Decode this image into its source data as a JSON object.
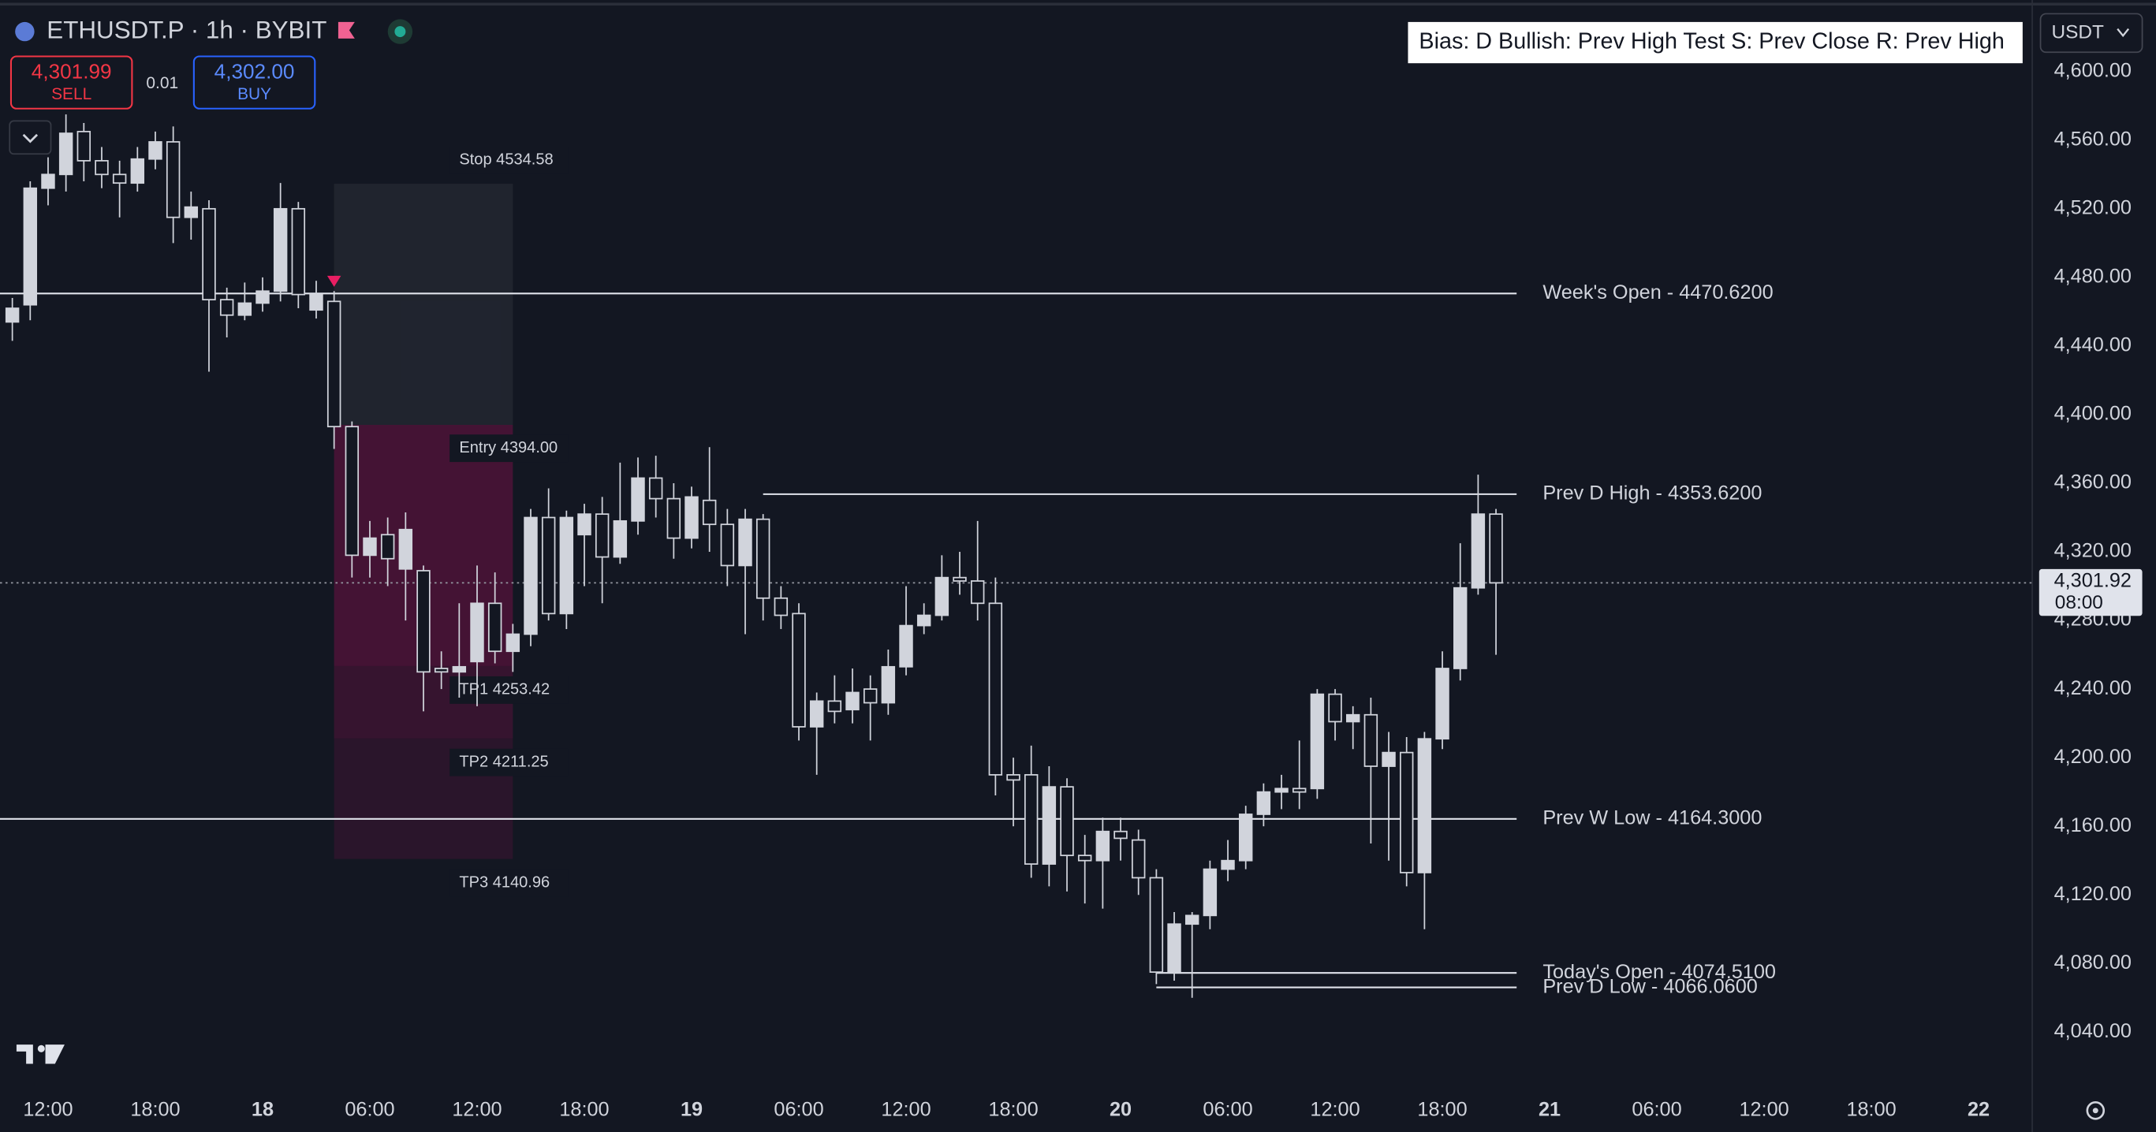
{
  "chart_data": {
    "type": "candlestick",
    "title": "ETHUSDT.P · 1h · BYBIT",
    "x": [
      -2,
      -1,
      0,
      1,
      2,
      3,
      4,
      5,
      6,
      7,
      8,
      9,
      10,
      11,
      12,
      13,
      14,
      15,
      16,
      17,
      18,
      19,
      20,
      21,
      22,
      23,
      24,
      25,
      26,
      27,
      28,
      29,
      30,
      31,
      32,
      33,
      34,
      35,
      36,
      37,
      38,
      39,
      40,
      41,
      42,
      43,
      44,
      45,
      46,
      47,
      48,
      49,
      50,
      51,
      52,
      53,
      54,
      55,
      56,
      57,
      58,
      59,
      60,
      61,
      62,
      63,
      64,
      65,
      66,
      67,
      68,
      69,
      70,
      71,
      72,
      73,
      74,
      75,
      76,
      77,
      78,
      79,
      80,
      81
    ],
    "open": [
      4454,
      4464,
      4532,
      4540,
      4565,
      4548,
      4540,
      4535,
      4549,
      4559,
      4515,
      4520,
      4467,
      4458,
      4465,
      4472,
      4520,
      4461,
      4466,
      4393,
      4318,
      4330,
      4310,
      4309,
      4252,
      4250,
      4256,
      4290,
      4262,
      4272,
      4340,
      4284,
      4330,
      4342,
      4317,
      4338,
      4363,
      4351,
      4328,
      4350,
      4336,
      4312,
      4339,
      4293,
      4284,
      4218,
      4233,
      4228,
      4240,
      4232,
      4253,
      4277,
      4283,
      4305,
      4303,
      4290,
      4190,
      4190,
      4138,
      4183,
      4143,
      4140,
      4157,
      4152,
      4130,
      4075,
      4103,
      4108,
      4135,
      4140,
      4167,
      4180,
      4182,
      4182,
      4237,
      4221,
      4225,
      4195,
      4203,
      4133,
      4211,
      4252,
      4299,
      4342
    ],
    "high": [
      4468,
      4536,
      4550,
      4575,
      4570,
      4556,
      4548,
      4556,
      4565,
      4568,
      4530,
      4525,
      4474,
      4477,
      4480,
      4535,
      4524,
      4478,
      4472,
      4396,
      4338,
      4340,
      4343,
      4312,
      4262,
      4290,
      4312,
      4308,
      4278,
      4345,
      4357,
      4344,
      4348,
      4352,
      4372,
      4375,
      4376,
      4360,
      4358,
      4381,
      4345,
      4345,
      4342,
      4300,
      4290,
      4238,
      4248,
      4252,
      4248,
      4263,
      4300,
      4290,
      4318,
      4320,
      4338,
      4305,
      4200,
      4207,
      4195,
      4188,
      4155,
      4165,
      4165,
      4158,
      4135,
      4110,
      4110,
      4140,
      4152,
      4172,
      4185,
      4190,
      4210,
      4240,
      4240,
      4230,
      4235,
      4215,
      4212,
      4215,
      4262,
      4325,
      4365,
      4345
    ],
    "low": [
      4443,
      4455,
      4522,
      4530,
      4536,
      4532,
      4515,
      4530,
      4543,
      4500,
      4502,
      4425,
      4445,
      4455,
      4460,
      4466,
      4462,
      4456,
      4380,
      4305,
      4305,
      4300,
      4280,
      4227,
      4240,
      4235,
      4230,
      4255,
      4250,
      4265,
      4280,
      4275,
      4300,
      4290,
      4313,
      4330,
      4340,
      4316,
      4322,
      4320,
      4300,
      4272,
      4280,
      4275,
      4210,
      4190,
      4220,
      4220,
      4210,
      4225,
      4248,
      4272,
      4280,
      4295,
      4280,
      4178,
      4160,
      4130,
      4125,
      4122,
      4115,
      4112,
      4140,
      4120,
      4068,
      4070,
      4060,
      4100,
      4128,
      4135,
      4160,
      4170,
      4170,
      4176,
      4210,
      4205,
      4150,
      4140,
      4125,
      4100,
      4205,
      4245,
      4295,
      4260
    ],
    "close": [
      4462,
      4532,
      4540,
      4564,
      4548,
      4540,
      4535,
      4549,
      4559,
      4515,
      4521,
      4467,
      4458,
      4465,
      4472,
      4520,
      4470,
      4470,
      4393,
      4318,
      4328,
      4316,
      4333,
      4250,
      4250,
      4253,
      4290,
      4262,
      4272,
      4340,
      4284,
      4340,
      4342,
      4317,
      4338,
      4363,
      4351,
      4328,
      4352,
      4336,
      4312,
      4339,
      4293,
      4283,
      4218,
      4233,
      4227,
      4238,
      4232,
      4253,
      4277,
      4283,
      4305,
      4303,
      4290,
      4190,
      4187,
      4138,
      4183,
      4143,
      4140,
      4157,
      4153,
      4130,
      4075,
      4103,
      4108,
      4135,
      4140,
      4167,
      4180,
      4182,
      4180,
      4237,
      4221,
      4225,
      4195,
      4203,
      4133,
      4211,
      4252,
      4299,
      4342,
      4301.92
    ],
    "up_color": "#d1d4dc",
    "down_color": "#131722",
    "xlim": [
      -2.69,
      111
    ],
    "xticks": [
      {
        "value": 0,
        "label": "12:00"
      },
      {
        "value": 6,
        "label": "18:00"
      },
      {
        "value": 12,
        "label": "18"
      },
      {
        "value": 18,
        "label": "06:00"
      },
      {
        "value": 24,
        "label": "12:00"
      },
      {
        "value": 30,
        "label": "18:00"
      },
      {
        "value": 36,
        "label": "19"
      },
      {
        "value": 42,
        "label": "06:00"
      },
      {
        "value": 48,
        "label": "12:00"
      },
      {
        "value": 54,
        "label": "18:00"
      },
      {
        "value": 60,
        "label": "20"
      },
      {
        "value": 66,
        "label": "06:00"
      },
      {
        "value": 72,
        "label": "12:00"
      },
      {
        "value": 78,
        "label": "18:00"
      },
      {
        "value": 84,
        "label": "21"
      },
      {
        "value": 90,
        "label": "06:00"
      },
      {
        "value": 96,
        "label": "12:00"
      },
      {
        "value": 102,
        "label": "18:00"
      },
      {
        "value": 108,
        "label": "22"
      }
    ],
    "ylim": [
      4008.7,
      4641.7
    ],
    "yticks": [
      {
        "value": 4600,
        "label": "4,600.00"
      },
      {
        "value": 4560,
        "label": "4,560.00"
      },
      {
        "value": 4520,
        "label": "4,520.00"
      },
      {
        "value": 4480,
        "label": "4,480.00"
      },
      {
        "value": 4440,
        "label": "4,440.00"
      },
      {
        "value": 4400,
        "label": "4,400.00"
      },
      {
        "value": 4360,
        "label": "4,360.00"
      },
      {
        "value": 4320,
        "label": "4,320.00"
      },
      {
        "value": 4280,
        "label": "4,280.00"
      },
      {
        "value": 4240,
        "label": "4,240.00"
      },
      {
        "value": 4200,
        "label": "4,200.00"
      },
      {
        "value": 4160,
        "label": "4,160.00"
      },
      {
        "value": 4120,
        "label": "4,120.00"
      },
      {
        "value": 4080,
        "label": "4,080.00"
      },
      {
        "value": 4040,
        "label": "4,040.00"
      }
    ],
    "last_price": {
      "value": 4301.92,
      "label": "4,301.92"
    },
    "countdown": "08:00",
    "currency": "USDT",
    "levels": [
      {
        "label": "Week's Open   - 4470.6200",
        "value": 4470.62
      },
      {
        "label": "Prev D High - 4353.6200",
        "value": 4353.62,
        "from": 40
      },
      {
        "label": "Prev W Low  - 4164.3000",
        "value": 4164.3
      },
      {
        "label": "Today's Open - 4074.5100",
        "value": 4074.51,
        "from": 62
      },
      {
        "label": "Prev D Low  - 4066.0600",
        "value": 4066.06,
        "from": 62
      }
    ],
    "position": {
      "from": 16,
      "to": 26,
      "stop": {
        "label": "Stop  4534.58",
        "value": 4534.58
      },
      "entry": {
        "label": "Entry 4394.00",
        "value": 4394
      },
      "targets": [
        {
          "label": "TP1   4253.42",
          "value": 4253.42
        },
        {
          "label": "TP2   4211.25",
          "value": 4211.25
        },
        {
          "label": "TP3   4140.96",
          "value": 4140.96
        }
      ]
    },
    "bias": "Bias: D  Bullish: Prev High Test  S: Prev Close  R: Prev High",
    "trade": {
      "sell_price": "4,301.99",
      "sell_label": "SELL",
      "quantity": "0.01",
      "buy_price": "4,302.00",
      "buy_label": "BUY"
    }
  }
}
